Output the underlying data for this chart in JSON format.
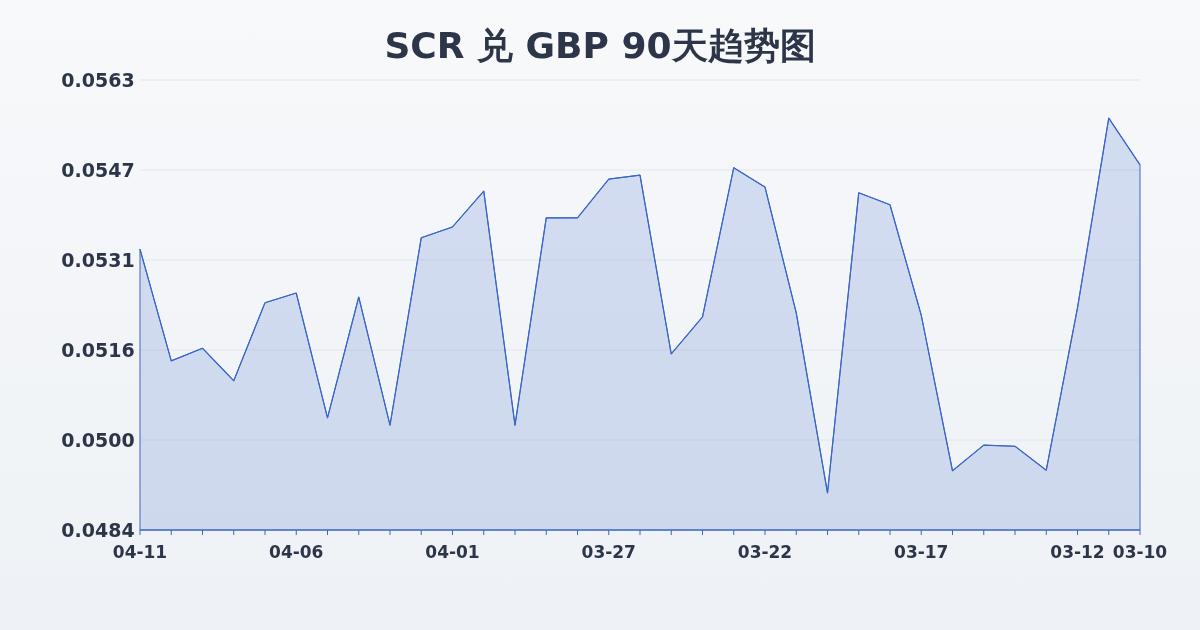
{
  "chart_data": {
    "type": "area",
    "title": "SCR 兑 GBP 90天趋势图",
    "categories": [
      "04-11",
      null,
      null,
      null,
      null,
      "04-06",
      null,
      null,
      null,
      null,
      "04-01",
      null,
      null,
      null,
      null,
      "03-27",
      null,
      null,
      null,
      null,
      "03-22",
      null,
      null,
      null,
      null,
      "03-17",
      null,
      null,
      null,
      null,
      "03-12",
      null,
      "03-10"
    ],
    "series": [
      {
        "color": "#3a66c8",
        "values": [
          0.05333,
          0.05137,
          0.05159,
          0.05102,
          0.05239,
          0.05256,
          0.05037,
          0.05249,
          0.05024,
          0.05353,
          0.05372,
          0.05435,
          0.05024,
          0.05388,
          0.05388,
          0.05456,
          0.05463,
          0.05149,
          0.05214,
          0.05476,
          0.05442,
          0.05221,
          0.04905,
          0.05432,
          0.05411,
          0.05217,
          0.04944,
          0.04989,
          0.04987,
          0.04945,
          0.0523,
          0.05563,
          0.05481
        ]
      }
    ],
    "ylim": [
      0.0484,
      0.0563
    ],
    "yticks": [
      0.0484,
      {
        "value": 0.04998,
        "label": "0.0500"
      },
      {
        "value": 0.05156,
        "label": "0.0516"
      },
      {
        "value": 0.05314,
        "label": "0.0531"
      },
      {
        "value": 0.05472,
        "label": "0.0547"
      },
      0.0563
    ],
    "grid": true
  }
}
